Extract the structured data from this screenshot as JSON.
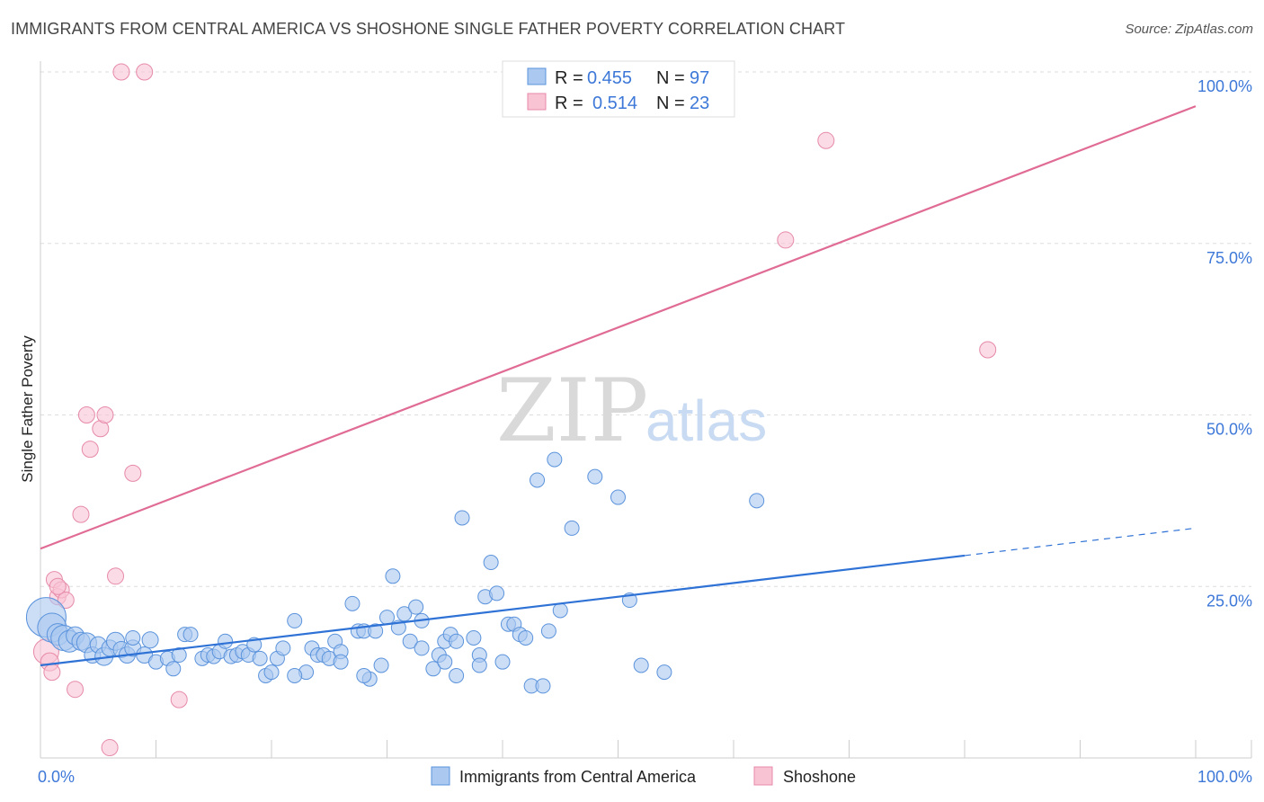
{
  "title": "IMMIGRANTS FROM CENTRAL AMERICA VS SHOSHONE SINGLE FATHER POVERTY CORRELATION CHART",
  "source": "Source: ZipAtlas.com",
  "watermark": {
    "zip": "ZIP",
    "atlas": "atlas"
  },
  "colors": {
    "blue_fill": "#aac8f0",
    "blue_stroke": "#5b93dc",
    "blue_line": "#2f72d6",
    "pink_fill": "#f8c3d3",
    "pink_stroke": "#e68aa8",
    "pink_line": "#e06b94",
    "tick_text": "#3d78d8",
    "grid": "#dddddd"
  },
  "legend": {
    "r_label": "R =",
    "n_label": "N =",
    "series": [
      {
        "r": "0.455",
        "n": "97"
      },
      {
        "r": "0.514",
        "n": "23"
      }
    ]
  },
  "chart_data": {
    "type": "scatter",
    "title": "IMMIGRANTS FROM CENTRAL AMERICA VS SHOSHONE SINGLE FATHER POVERTY CORRELATION CHART",
    "xlabel": "",
    "ylabel": "Single Father Poverty",
    "xlim": [
      0,
      100
    ],
    "ylim": [
      0,
      100
    ],
    "x_tick_labels": [
      "0.0%",
      "100.0%"
    ],
    "y_ticks": [
      25,
      50,
      75,
      100
    ],
    "y_tick_labels": [
      "25.0%",
      "50.0%",
      "75.0%",
      "100.0%"
    ],
    "grid": true,
    "legend_position": "top-center",
    "series": [
      {
        "name": "Immigrants from Central America",
        "r": 0.455,
        "n": 97,
        "trend": {
          "x0": 0,
          "y0": 13.5,
          "x1": 80,
          "y1": 29.5,
          "dashed_to_x": 100,
          "dashed_to_y": 33.5
        },
        "points": [
          [
            0.5,
            20.5,
            22
          ],
          [
            1,
            19,
            16
          ],
          [
            1.5,
            18,
            12
          ],
          [
            2,
            17.5,
            14
          ],
          [
            2.5,
            17,
            12
          ],
          [
            3,
            17.8,
            10
          ],
          [
            3.5,
            17,
            10
          ],
          [
            4,
            16.8,
            11
          ],
          [
            4.5,
            15,
            9
          ],
          [
            5,
            16.5,
            9
          ],
          [
            5.5,
            14.8,
            10
          ],
          [
            6,
            16,
            9
          ],
          [
            6.5,
            17,
            10
          ],
          [
            7,
            15.8,
            9
          ],
          [
            7.5,
            15,
            9
          ],
          [
            8,
            16,
            9
          ],
          [
            8,
            17.5,
            8
          ],
          [
            9,
            15,
            9
          ],
          [
            9.5,
            17.2,
            9
          ],
          [
            10,
            14,
            8
          ],
          [
            11,
            14.5,
            8
          ],
          [
            11.5,
            13,
            8
          ],
          [
            12,
            15,
            8
          ],
          [
            12.5,
            18,
            8
          ],
          [
            13,
            18,
            8
          ],
          [
            14,
            14.5,
            8
          ],
          [
            14.5,
            15,
            8
          ],
          [
            15,
            14.8,
            8
          ],
          [
            15.5,
            15.5,
            8
          ],
          [
            16,
            17,
            8
          ],
          [
            16.5,
            14.8,
            8
          ],
          [
            17,
            15,
            8
          ],
          [
            17.5,
            15.5,
            8
          ],
          [
            18,
            15,
            8
          ],
          [
            18.5,
            16.5,
            8
          ],
          [
            19,
            14.5,
            8
          ],
          [
            19.5,
            12,
            8
          ],
          [
            20,
            12.5,
            8
          ],
          [
            20.5,
            14.5,
            8
          ],
          [
            21,
            16,
            8
          ],
          [
            22,
            20,
            8
          ],
          [
            23,
            12.5,
            8
          ],
          [
            23.5,
            16,
            8
          ],
          [
            24,
            15,
            8
          ],
          [
            24.5,
            15,
            8
          ],
          [
            25,
            14.5,
            8
          ],
          [
            25.5,
            17,
            8
          ],
          [
            26,
            15.5,
            8
          ],
          [
            26,
            14,
            8
          ],
          [
            27,
            22.5,
            8
          ],
          [
            27.5,
            18.5,
            8
          ],
          [
            28,
            18.5,
            8
          ],
          [
            28.5,
            11.5,
            8
          ],
          [
            29,
            18.5,
            8
          ],
          [
            29.5,
            13.5,
            8
          ],
          [
            30,
            20.5,
            8
          ],
          [
            30.5,
            26.5,
            8
          ],
          [
            31,
            19,
            8
          ],
          [
            31.5,
            21,
            8
          ],
          [
            32,
            17,
            8
          ],
          [
            32.5,
            22,
            8
          ],
          [
            33,
            20,
            8
          ],
          [
            33,
            16,
            8
          ],
          [
            34,
            13,
            8
          ],
          [
            34.5,
            15,
            8
          ],
          [
            35,
            17,
            8
          ],
          [
            35,
            14,
            8
          ],
          [
            35.5,
            18,
            8
          ],
          [
            36,
            17,
            8
          ],
          [
            36.5,
            35,
            8
          ],
          [
            37.5,
            17.5,
            8
          ],
          [
            38,
            15,
            8
          ],
          [
            38,
            13.5,
            8
          ],
          [
            38.5,
            23.5,
            8
          ],
          [
            39,
            28.5,
            8
          ],
          [
            39.5,
            24,
            8
          ],
          [
            40,
            14,
            8
          ],
          [
            40.5,
            19.5,
            8
          ],
          [
            41,
            19.5,
            8
          ],
          [
            41.5,
            18,
            8
          ],
          [
            42,
            17.5,
            8
          ],
          [
            42.5,
            10.5,
            8
          ],
          [
            43,
            40.5,
            8
          ],
          [
            43.5,
            10.5,
            8
          ],
          [
            44,
            18.5,
            8
          ],
          [
            44.5,
            43.5,
            8
          ],
          [
            45,
            21.5,
            8
          ],
          [
            46,
            33.5,
            8
          ],
          [
            48,
            41,
            8
          ],
          [
            50,
            38,
            8
          ],
          [
            51,
            23,
            8
          ],
          [
            52,
            13.5,
            8
          ],
          [
            54,
            12.5,
            8
          ],
          [
            62,
            37.5,
            8
          ],
          [
            28,
            12,
            8
          ],
          [
            22,
            12,
            8
          ],
          [
            36,
            12,
            8
          ]
        ]
      },
      {
        "name": "Shoshone",
        "r": 0.514,
        "n": 23,
        "trend": {
          "x0": 0,
          "y0": 30.5,
          "x1": 100,
          "y1": 95
        },
        "points": [
          [
            0.5,
            15.5,
            14
          ],
          [
            0.8,
            14,
            10
          ],
          [
            1,
            12.5,
            9
          ],
          [
            1.2,
            26,
            9
          ],
          [
            1.5,
            23.5,
            9
          ],
          [
            1.8,
            24.5,
            9
          ],
          [
            2.2,
            23,
            9
          ],
          [
            3,
            10,
            9
          ],
          [
            3.5,
            35.5,
            9
          ],
          [
            4,
            50,
            9
          ],
          [
            4.3,
            45,
            9
          ],
          [
            5.2,
            48,
            9
          ],
          [
            5.6,
            50,
            9
          ],
          [
            6,
            1.5,
            9
          ],
          [
            6.5,
            26.5,
            9
          ],
          [
            7,
            100,
            9
          ],
          [
            8,
            41.5,
            9
          ],
          [
            9,
            100,
            9
          ],
          [
            12,
            8.5,
            9
          ],
          [
            68,
            90,
            9
          ],
          [
            64.5,
            75.5,
            9
          ],
          [
            82,
            59.5,
            9
          ],
          [
            1.5,
            25,
            9
          ]
        ]
      }
    ]
  }
}
